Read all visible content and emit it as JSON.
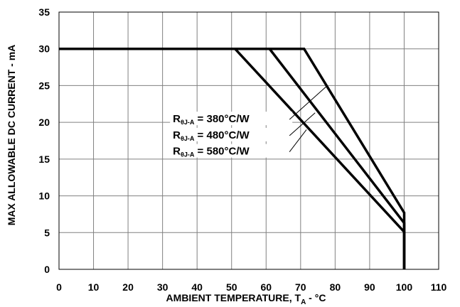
{
  "chart_data": {
    "type": "line",
    "title": "",
    "xlabel": {
      "main": "AMBIENT TEMPERATURE, T",
      "sub": "A",
      "suffix": " - °C"
    },
    "ylabel": "MAX ALLOWABLE DC CURRENT - mA",
    "xlim": [
      0,
      110
    ],
    "ylim": [
      0,
      35
    ],
    "xticks": [
      "0",
      "10",
      "20",
      "30",
      "40",
      "50",
      "60",
      "70",
      "80",
      "90",
      "100",
      "110"
    ],
    "yticks": [
      "0",
      "5",
      "10",
      "15",
      "20",
      "25",
      "30",
      "35"
    ],
    "grid": true,
    "series": [
      {
        "name": "RθJ-A = 380°C/W",
        "x": [
          0,
          71,
          100,
          100
        ],
        "y": [
          30,
          30,
          7.7,
          0
        ]
      },
      {
        "name": "RθJ-A = 480°C/W",
        "x": [
          0,
          61,
          100,
          100
        ],
        "y": [
          30,
          30,
          6.3,
          0
        ]
      },
      {
        "name": "RθJ-A = 580°C/W",
        "x": [
          0,
          51,
          100,
          100
        ],
        "y": [
          30,
          30,
          5.1,
          0
        ]
      }
    ],
    "annotations": [
      {
        "prefix": "R",
        "sub": "θJ-A",
        "suffix": " = 380°C/W",
        "label_at": [
          40,
          20
        ],
        "leader_to": [
          77.5,
          24.9
        ]
      },
      {
        "prefix": "R",
        "sub": "θJ-A",
        "suffix": " = 480°C/W",
        "label_at": [
          40,
          17.8
        ],
        "leader_to": [
          74.2,
          21.3
        ]
      },
      {
        "prefix": "R",
        "sub": "θJ-A",
        "suffix": " = 580°C/W",
        "label_at": [
          40,
          15.6
        ],
        "leader_to": [
          71.7,
          19
        ]
      }
    ]
  }
}
